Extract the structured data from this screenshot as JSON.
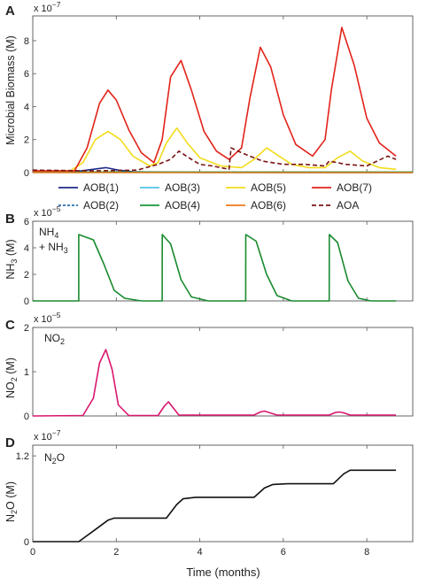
{
  "chart_data": [
    {
      "panel": "A",
      "type": "line",
      "ylabel": "Microbial Biomass (M)",
      "exponent": "x 10-7",
      "xlim": [
        0,
        9.1
      ],
      "ylim": [
        0,
        9.5
      ],
      "yticks": [
        0,
        2,
        4,
        6,
        8
      ],
      "xticks": [
        0,
        2,
        4,
        6,
        8
      ],
      "grid": false,
      "legend_position": "below plot",
      "series": [
        {
          "name": "AOB(1)",
          "color": "#1f2a8a",
          "dash": "none",
          "x": [
            0,
            1.0,
            1.4,
            1.75,
            2.05,
            2.4,
            3,
            4,
            6,
            8,
            9.1
          ],
          "y": [
            0.1,
            0.05,
            0.18,
            0.3,
            0.15,
            0.05,
            0.02,
            0.01,
            0.0,
            0.0,
            0.0
          ]
        },
        {
          "name": "AOB(2)",
          "color": "#2a6fb0",
          "dash": "3,2",
          "x": [
            0,
            2,
            4,
            6,
            8,
            9.1
          ],
          "y": [
            0.02,
            0.02,
            0.02,
            0.02,
            0.02,
            0.02
          ]
        },
        {
          "name": "AOB(3)",
          "color": "#4fc4ea",
          "dash": "none",
          "x": [
            0,
            2,
            4,
            6,
            8,
            9.1
          ],
          "y": [
            0.01,
            0.01,
            0.01,
            0.01,
            0.01,
            0.01
          ]
        },
        {
          "name": "AOB(4)",
          "color": "#1a9a3a",
          "dash": "none",
          "x": [
            0,
            2,
            4,
            6,
            8,
            9.1
          ],
          "y": [
            0.03,
            0.03,
            0.03,
            0.03,
            0.03,
            0.03
          ]
        },
        {
          "name": "AOB(5)",
          "color": "#f2dc1c",
          "dash": "none",
          "x": [
            0,
            0.9,
            1.2,
            1.5,
            1.8,
            2.1,
            2.4,
            2.8,
            3.0,
            3.2,
            3.45,
            3.7,
            4.0,
            4.5,
            5.0,
            5.3,
            5.6,
            5.9,
            6.2,
            6.6,
            7.0,
            7.3,
            7.6,
            7.9,
            8.3,
            8.7
          ],
          "y": [
            0.1,
            0.1,
            0.6,
            2.0,
            2.5,
            2.0,
            1.0,
            0.4,
            0.6,
            1.8,
            2.7,
            1.8,
            0.9,
            0.4,
            0.3,
            0.8,
            1.5,
            1.0,
            0.5,
            0.3,
            0.3,
            0.9,
            1.3,
            0.7,
            0.3,
            0.2
          ]
        },
        {
          "name": "AOB(6)",
          "color": "#ee7a1b",
          "dash": "none",
          "x": [
            0,
            2,
            4,
            6,
            8,
            9.1
          ],
          "y": [
            0.0,
            0.0,
            0.0,
            0.0,
            0.0,
            0.0
          ]
        },
        {
          "name": "AOB(7)",
          "color": "#e2231a",
          "dash": "none",
          "x": [
            0,
            1.0,
            1.3,
            1.6,
            1.8,
            2.0,
            2.3,
            2.6,
            2.9,
            3.1,
            3.3,
            3.55,
            3.8,
            4.1,
            4.4,
            4.7,
            5.0,
            5.2,
            5.45,
            5.7,
            6.0,
            6.3,
            6.7,
            7.0,
            7.15,
            7.4,
            7.7,
            8.0,
            8.3,
            8.7
          ],
          "y": [
            0.1,
            0.1,
            1.5,
            4.2,
            5.0,
            4.4,
            2.6,
            1.2,
            0.6,
            2.0,
            5.8,
            6.8,
            5.0,
            2.5,
            1.3,
            0.8,
            1.5,
            4.5,
            7.6,
            6.4,
            3.5,
            1.7,
            1.0,
            2.0,
            5.0,
            8.8,
            6.5,
            3.3,
            1.8,
            1.0
          ]
        },
        {
          "name": "AOA",
          "color": "#7a1414",
          "dash": "5,3",
          "x": [
            0,
            1.5,
            2.5,
            3.0,
            3.3,
            3.5,
            3.8,
            4.0,
            4.3,
            4.5,
            4.7,
            4.75,
            5.0,
            5.5,
            6.0,
            6.5,
            7.0,
            7.1,
            7.5,
            8.0,
            8.5,
            8.7
          ],
          "y": [
            0.15,
            0.1,
            0.15,
            0.5,
            0.8,
            1.3,
            0.8,
            0.5,
            0.4,
            0.3,
            0.2,
            1.5,
            1.2,
            0.7,
            0.5,
            0.5,
            0.4,
            0.7,
            0.5,
            0.4,
            1.0,
            0.8
          ]
        }
      ]
    },
    {
      "panel": "B",
      "type": "line",
      "ylabel": "NH3 (M)",
      "exponent": "x 10-5",
      "label": "NH4 + NH3",
      "xlim": [
        0,
        9.1
      ],
      "ylim": [
        0,
        6
      ],
      "yticks": [
        0,
        2,
        4,
        6
      ],
      "xticks": [
        0,
        2,
        4,
        6,
        8
      ],
      "series": [
        {
          "name": "NH4 + NH3",
          "color": "#1a8a2e",
          "dash": "none",
          "x": [
            0,
            1.1,
            1.101,
            1.45,
            1.7,
            1.95,
            2.2,
            2.6,
            3.1,
            3.101,
            3.3,
            3.55,
            3.8,
            4.2,
            5.1,
            5.101,
            5.35,
            5.6,
            5.85,
            6.2,
            7.1,
            7.101,
            7.3,
            7.55,
            7.8,
            8.1,
            8.7
          ],
          "y": [
            0,
            0,
            5.0,
            4.6,
            2.8,
            0.8,
            0.2,
            0,
            0,
            5.0,
            4.3,
            1.6,
            0.3,
            0,
            0,
            5.0,
            4.5,
            2.0,
            0.4,
            0,
            0,
            5.0,
            4.4,
            1.5,
            0.2,
            0,
            0
          ]
        }
      ]
    },
    {
      "panel": "C",
      "type": "line",
      "ylabel": "NO2 (M)",
      "exponent": "x 10-5",
      "label": "NO2",
      "xlim": [
        0,
        9.1
      ],
      "ylim": [
        0,
        2
      ],
      "yticks": [
        0,
        1,
        2
      ],
      "xticks": [
        0,
        2,
        4,
        6,
        8
      ],
      "series": [
        {
          "name": "NO2",
          "color": "#d8166e",
          "dash": "none",
          "x": [
            0,
            1.2,
            1.45,
            1.6,
            1.75,
            1.9,
            2.05,
            2.3,
            3.0,
            3.15,
            3.25,
            3.35,
            3.5,
            5.3,
            5.45,
            5.55,
            5.65,
            5.85,
            7.1,
            7.25,
            7.35,
            7.45,
            7.6,
            8.7
          ],
          "y": [
            0,
            0.01,
            0.4,
            1.2,
            1.5,
            1.05,
            0.25,
            0.01,
            0.01,
            0.22,
            0.32,
            0.2,
            0.02,
            0.02,
            0.09,
            0.11,
            0.08,
            0.02,
            0.02,
            0.08,
            0.09,
            0.07,
            0.02,
            0.02
          ]
        }
      ]
    },
    {
      "panel": "D",
      "type": "line",
      "ylabel": "N2O (M)",
      "exponent": "x 10-7",
      "label": "N2O",
      "xlabel": "Time (months)",
      "xlim": [
        0,
        9.1
      ],
      "ylim": [
        0,
        1.35
      ],
      "yticks": [
        0,
        1.2
      ],
      "xticks": [
        0,
        2,
        4,
        6,
        8
      ],
      "series": [
        {
          "name": "N2O",
          "color": "#111111",
          "dash": "none",
          "x": [
            0,
            1.1,
            1.5,
            1.8,
            1.95,
            2.2,
            2.5,
            3.2,
            3.45,
            3.6,
            3.9,
            4.3,
            5.3,
            5.55,
            5.75,
            6.1,
            6.6,
            7.2,
            7.45,
            7.6,
            7.9,
            8.7
          ],
          "y": [
            0,
            0,
            0.17,
            0.3,
            0.33,
            0.33,
            0.33,
            0.33,
            0.52,
            0.6,
            0.62,
            0.62,
            0.62,
            0.75,
            0.8,
            0.81,
            0.81,
            0.81,
            0.95,
            1.0,
            1.0,
            1.0
          ]
        }
      ]
    }
  ],
  "legend": [
    {
      "label": "AOB(1)",
      "color": "#1f2a8a",
      "dash": "none"
    },
    {
      "label": "AOB(3)",
      "color": "#4fc4ea",
      "dash": "none"
    },
    {
      "label": "AOB(5)",
      "color": "#f2dc1c",
      "dash": "none"
    },
    {
      "label": "AOB(7)",
      "color": "#e2231a",
      "dash": "none"
    },
    {
      "label": "AOB(2)",
      "color": "#2a6fb0",
      "dash": "3,2"
    },
    {
      "label": "AOB(4)",
      "color": "#1a9a3a",
      "dash": "none"
    },
    {
      "label": "AOB(6)",
      "color": "#ee7a1b",
      "dash": "none"
    },
    {
      "label": "AOA",
      "color": "#7a1414",
      "dash": "5,3"
    }
  ],
  "text": {
    "panel_a": "A",
    "panel_b": "B",
    "panel_c": "C",
    "panel_d": "D",
    "ylabel_a": "Microbial Biomass (M)",
    "ylabel_b": "NH3 (M)",
    "ylabel_c": "NO2 (M)",
    "ylabel_d": "N2O (M)",
    "exp_a": "x 10-7",
    "exp_b": "x 10-5",
    "exp_c": "x 10-5",
    "exp_d": "x 10-7",
    "label_b_line1": "NH4",
    "label_b_line2": "+ NH3",
    "label_c": "NO2",
    "label_d": "N2O",
    "xlabel": "Time (months)"
  }
}
